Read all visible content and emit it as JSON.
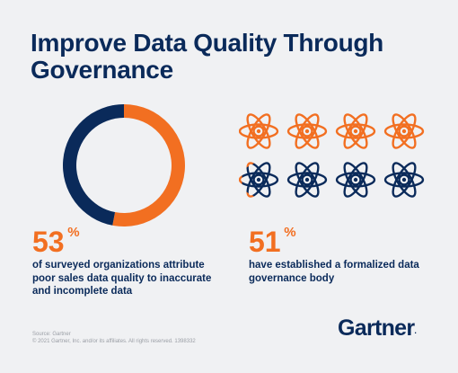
{
  "title": {
    "line1": "Improve Data Quality Through",
    "line2": "Governance"
  },
  "colors": {
    "orange": "#f26f21",
    "navy": "#0a2a5a",
    "background": "#f0f1f3"
  },
  "icons": {
    "atom": "atom-icon"
  },
  "chart_data": [
    {
      "type": "pie",
      "variant": "donut",
      "values": [
        53,
        47
      ],
      "colors": [
        "#f26f21",
        "#0a2a5a"
      ]
    },
    {
      "type": "pictogram",
      "icon": "atom-icon",
      "rows": 2,
      "columns": 4,
      "total_icons": 8,
      "value_percent": 51,
      "colors": [
        "#f26f21",
        "#0a2a5a"
      ]
    }
  ],
  "stats": [
    {
      "value": "53",
      "unit": "%",
      "text_line1": "of surveyed organizations attribute",
      "text_line2": "poor sales data quality to inaccurate",
      "text_line3": "and incomplete data"
    },
    {
      "value": "51",
      "unit": "%",
      "text_line1": "have established a formalized data",
      "text_line2": "governance body"
    }
  ],
  "footer": {
    "source": "Source: Gartner",
    "copyright": "© 2021 Gartner, Inc. and/or its affiliates. All rights reserved. 1398332"
  },
  "brand": {
    "name": "Gartner",
    "dot": "."
  }
}
